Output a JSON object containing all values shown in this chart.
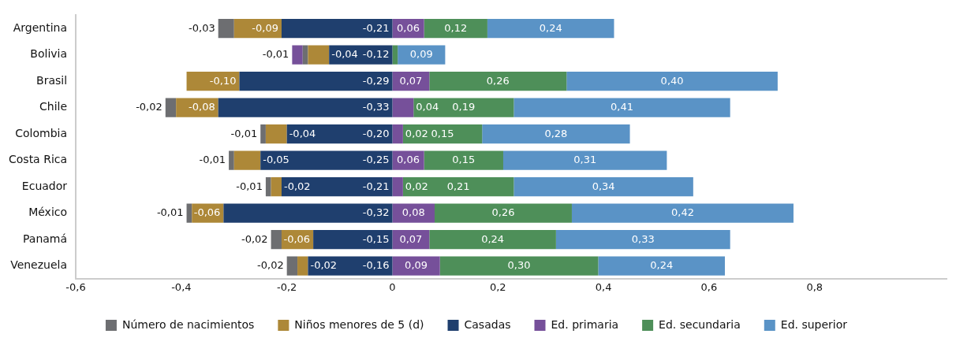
{
  "chart_data": {
    "type": "bar",
    "orientation": "horizontal",
    "stacked": true,
    "categories": [
      "Argentina",
      "Bolivia",
      "Brasil",
      "Chile",
      "Colombia",
      "Costa Rica",
      "Ecuador",
      "México",
      "Panamá",
      "Venezuela"
    ],
    "series": [
      {
        "name": "Casadas",
        "color": "#1f3f6e",
        "values": [
          -0.21,
          -0.12,
          -0.29,
          -0.33,
          -0.2,
          -0.25,
          -0.21,
          -0.32,
          -0.15,
          -0.16
        ],
        "value_labels": [
          "-0,21",
          "-0,12",
          "-0,29",
          "-0,33",
          "-0,20",
          "-0,25",
          "-0,21",
          "-0,32",
          "-0,15",
          "-0,16"
        ]
      },
      {
        "name": "Niños menores de 5 (d)",
        "color": "#ad8838",
        "values": [
          -0.09,
          -0.04,
          -0.1,
          -0.08,
          -0.04,
          -0.05,
          -0.02,
          -0.06,
          -0.06,
          -0.02
        ],
        "value_labels": [
          "-0,09",
          "-0,04",
          "-0,10",
          "-0,08",
          "-0,04",
          "-0,05",
          "-0,02",
          "-0,06",
          "-0,06",
          "-0,02"
        ]
      },
      {
        "name": "Número de nacimientos",
        "color": "#6d6e71",
        "values": [
          -0.03,
          -0.01,
          0,
          -0.02,
          -0.01,
          -0.01,
          -0.01,
          -0.01,
          -0.02,
          -0.02
        ],
        "value_labels": [
          "-0,03",
          "-0,01",
          null,
          "-0,02",
          "-0,01",
          "-0,01",
          "-0,01",
          "-0,01",
          "-0,02",
          "-0,02"
        ]
      },
      {
        "name": "Ed. primaria",
        "color": "#76509a",
        "values": [
          0.06,
          -0.02,
          0.07,
          0.04,
          0.02,
          0.06,
          0.02,
          0.08,
          0.07,
          0.09
        ],
        "value_labels": [
          "0,06",
          null,
          "0,07",
          "0,04",
          "0,02",
          "0,06",
          "0,02",
          "0,08",
          "0,07",
          "0,09"
        ]
      },
      {
        "name": "Ed. secundaria",
        "color": "#4e8f59",
        "values": [
          0.12,
          0.01,
          0.26,
          0.19,
          0.15,
          0.15,
          0.21,
          0.26,
          0.24,
          0.3
        ],
        "value_labels": [
          "0,12",
          null,
          "0,26",
          "0,19",
          "0,15",
          "0,15",
          "0,21",
          "0,26",
          "0,24",
          "0,30"
        ]
      },
      {
        "name": "Ed. superior",
        "color": "#5a93c6",
        "values": [
          0.24,
          0.09,
          0.4,
          0.41,
          0.28,
          0.31,
          0.34,
          0.42,
          0.33,
          0.24
        ],
        "value_labels": [
          "0,24",
          "0,09",
          "0,40",
          "0,41",
          "0,28",
          "0,31",
          "0,34",
          "0,42",
          "0,33",
          "0,24"
        ]
      }
    ],
    "xlim": [
      -0.6,
      1.05
    ],
    "xticks": [
      {
        "value": -0.6,
        "label": "-0,6"
      },
      {
        "value": -0.4,
        "label": "-0,4"
      },
      {
        "value": -0.2,
        "label": "-0,2"
      },
      0,
      {
        "value": 0.2,
        "label": "0,2"
      },
      {
        "value": 0.4,
        "label": "0,4"
      },
      {
        "value": 0.6,
        "label": "0,6"
      },
      {
        "value": 0.8,
        "label": "0,8"
      }
    ],
    "legend": "bottom"
  }
}
